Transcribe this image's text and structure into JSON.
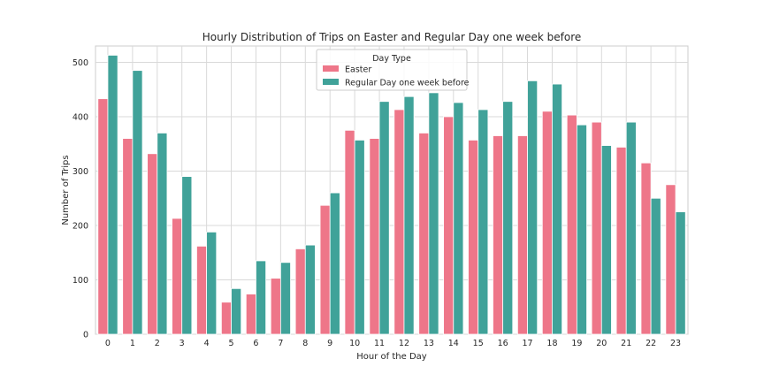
{
  "chart_data": {
    "type": "bar",
    "title": "Hourly Distribution of Trips on Easter and Regular Day one week before",
    "xlabel": "Hour of the Day",
    "ylabel": "Number of Trips",
    "categories": [
      "0",
      "1",
      "2",
      "3",
      "4",
      "5",
      "6",
      "7",
      "8",
      "9",
      "10",
      "11",
      "12",
      "13",
      "14",
      "15",
      "16",
      "17",
      "18",
      "19",
      "20",
      "21",
      "22",
      "23"
    ],
    "ylim": [
      0,
      530
    ],
    "yticks": [
      0,
      100,
      200,
      300,
      400,
      500
    ],
    "grid": true,
    "legend": {
      "title": "Day Type",
      "placement": "top-center"
    },
    "series": [
      {
        "name": "Easter",
        "color": "#ee7689",
        "values": [
          433,
          360,
          332,
          213,
          162,
          59,
          74,
          103,
          157,
          237,
          375,
          360,
          413,
          370,
          400,
          357,
          365,
          365,
          410,
          403,
          390,
          344,
          315,
          275
        ]
      },
      {
        "name": "Regular Day one week before",
        "color": "#40a299",
        "values": [
          513,
          485,
          370,
          290,
          188,
          84,
          135,
          132,
          164,
          260,
          357,
          428,
          437,
          444,
          426,
          413,
          428,
          466,
          460,
          385,
          347,
          390,
          250,
          225
        ]
      }
    ]
  }
}
